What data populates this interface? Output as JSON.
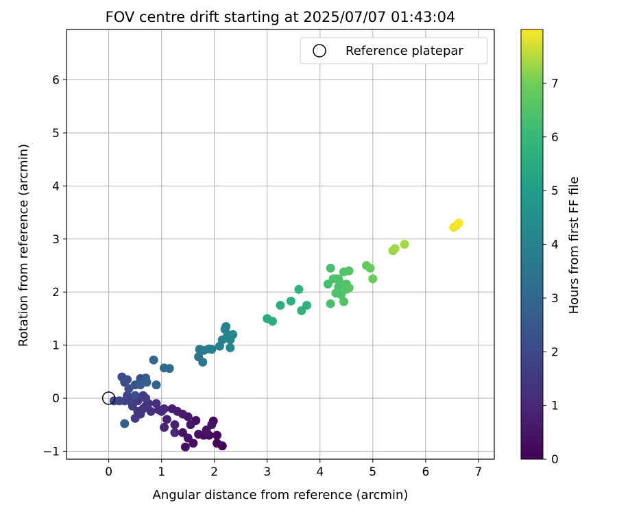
{
  "chart_data": {
    "type": "scatter",
    "title": "FOV centre drift starting at 2025/07/07 01:43:04",
    "xlabel": "Angular distance from reference (arcmin)",
    "ylabel": "Rotation from reference (arcmin)",
    "xlim": [
      -0.8,
      7.3
    ],
    "ylim": [
      -1.15,
      6.95
    ],
    "xticks": [
      0,
      1,
      2,
      3,
      4,
      5,
      6,
      7
    ],
    "yticks": [
      -1,
      0,
      1,
      2,
      3,
      4,
      5,
      6
    ],
    "grid": true,
    "legend": {
      "placement": "top-right",
      "label": "Reference platepar",
      "marker": "open-circle"
    },
    "reference_point": {
      "x": 0,
      "y": 0
    },
    "colorbar": {
      "label": "Hours from first FF file",
      "colormap": "viridis",
      "range": [
        0,
        8
      ],
      "ticks": [
        0,
        1,
        2,
        3,
        4,
        5,
        6,
        7
      ]
    },
    "points": [
      {
        "x": 2.15,
        "y": -0.9,
        "t": 0.05
      },
      {
        "x": 2.05,
        "y": -0.85,
        "t": 0.1
      },
      {
        "x": 1.98,
        "y": -0.43,
        "t": 0.12
      },
      {
        "x": 2.05,
        "y": -0.7,
        "t": 0.15
      },
      {
        "x": 1.9,
        "y": -0.7,
        "t": 0.2
      },
      {
        "x": 1.85,
        "y": -0.6,
        "t": 0.22
      },
      {
        "x": 1.8,
        "y": -0.7,
        "t": 0.25
      },
      {
        "x": 1.7,
        "y": -0.68,
        "t": 0.3
      },
      {
        "x": 1.65,
        "y": -0.42,
        "t": 0.32
      },
      {
        "x": 1.6,
        "y": -0.85,
        "t": 0.35
      },
      {
        "x": 1.45,
        "y": -0.92,
        "t": 0.38
      },
      {
        "x": 1.5,
        "y": -0.75,
        "t": 0.4
      },
      {
        "x": 1.4,
        "y": -0.65,
        "t": 0.45
      },
      {
        "x": 1.95,
        "y": -0.5,
        "t": 0.48
      },
      {
        "x": 1.85,
        "y": -0.65,
        "t": 0.5
      },
      {
        "x": 1.55,
        "y": -0.5,
        "t": 0.55
      },
      {
        "x": 1.5,
        "y": -0.35,
        "t": 0.6
      },
      {
        "x": 1.4,
        "y": -0.3,
        "t": 0.65
      },
      {
        "x": 1.3,
        "y": -0.25,
        "t": 0.7
      },
      {
        "x": 1.2,
        "y": -0.2,
        "t": 0.75
      },
      {
        "x": 1.25,
        "y": -0.5,
        "t": 0.8
      },
      {
        "x": 1.1,
        "y": -0.4,
        "t": 0.85
      },
      {
        "x": 1.05,
        "y": -0.55,
        "t": 0.9
      },
      {
        "x": 1.25,
        "y": -0.65,
        "t": 0.95
      },
      {
        "x": 1.0,
        "y": -0.25,
        "t": 1.0
      },
      {
        "x": 1.05,
        "y": -0.2,
        "t": 1.05
      },
      {
        "x": 0.95,
        "y": -0.22,
        "t": 1.1
      },
      {
        "x": 0.9,
        "y": -0.1,
        "t": 1.15
      },
      {
        "x": 0.8,
        "y": -0.25,
        "t": 1.2
      },
      {
        "x": 0.75,
        "y": -0.1,
        "t": 1.25
      },
      {
        "x": 0.7,
        "y": -0.15,
        "t": 1.3
      },
      {
        "x": 0.65,
        "y": -0.2,
        "t": 1.35
      },
      {
        "x": 0.6,
        "y": -0.3,
        "t": 1.4
      },
      {
        "x": 0.55,
        "y": -0.25,
        "t": 1.45
      },
      {
        "x": 0.5,
        "y": -0.38,
        "t": 1.5
      },
      {
        "x": 0.55,
        "y": -0.05,
        "t": 1.55
      },
      {
        "x": 0.65,
        "y": 0.05,
        "t": 1.6
      },
      {
        "x": 0.7,
        "y": 0.0,
        "t": 1.65
      },
      {
        "x": 0.45,
        "y": -0.15,
        "t": 1.7
      },
      {
        "x": 0.4,
        "y": -0.05,
        "t": 1.75
      },
      {
        "x": 0.35,
        "y": 0.05,
        "t": 1.8
      },
      {
        "x": 0.3,
        "y": -0.05,
        "t": 1.85
      },
      {
        "x": 0.2,
        "y": -0.05,
        "t": 1.9
      },
      {
        "x": 0.1,
        "y": -0.05,
        "t": 1.95
      },
      {
        "x": 0.25,
        "y": 0.4,
        "t": 2.0
      },
      {
        "x": 0.3,
        "y": 0.3,
        "t": 2.05
      },
      {
        "x": 0.35,
        "y": 0.35,
        "t": 2.1
      },
      {
        "x": 0.38,
        "y": 0.18,
        "t": 2.15
      },
      {
        "x": 0.5,
        "y": 0.05,
        "t": 2.2
      },
      {
        "x": 0.5,
        "y": 0.25,
        "t": 2.3
      },
      {
        "x": 0.6,
        "y": 0.37,
        "t": 2.4
      },
      {
        "x": 0.7,
        "y": 0.38,
        "t": 2.5
      },
      {
        "x": 0.6,
        "y": 0.25,
        "t": 2.6
      },
      {
        "x": 0.3,
        "y": -0.48,
        "t": 2.65
      },
      {
        "x": 0.72,
        "y": 0.3,
        "t": 2.75
      },
      {
        "x": 0.9,
        "y": 0.25,
        "t": 2.85
      },
      {
        "x": 0.85,
        "y": 0.72,
        "t": 2.95
      },
      {
        "x": 1.05,
        "y": 0.57,
        "t": 3.05
      },
      {
        "x": 1.15,
        "y": 0.56,
        "t": 3.15
      },
      {
        "x": 1.7,
        "y": 0.78,
        "t": 3.55
      },
      {
        "x": 1.78,
        "y": 0.68,
        "t": 3.65
      },
      {
        "x": 1.72,
        "y": 0.92,
        "t": 3.7
      },
      {
        "x": 1.8,
        "y": 0.9,
        "t": 3.75
      },
      {
        "x": 1.9,
        "y": 0.93,
        "t": 3.8
      },
      {
        "x": 1.95,
        "y": 0.92,
        "t": 3.85
      },
      {
        "x": 2.1,
        "y": 0.98,
        "t": 3.9
      },
      {
        "x": 2.15,
        "y": 1.1,
        "t": 3.95
      },
      {
        "x": 2.2,
        "y": 1.3,
        "t": 4.0
      },
      {
        "x": 2.22,
        "y": 1.35,
        "t": 4.05
      },
      {
        "x": 2.25,
        "y": 1.2,
        "t": 4.1
      },
      {
        "x": 2.3,
        "y": 1.1,
        "t": 4.15
      },
      {
        "x": 2.35,
        "y": 1.2,
        "t": 4.2
      },
      {
        "x": 2.3,
        "y": 0.95,
        "t": 4.25
      },
      {
        "x": 3.0,
        "y": 1.5,
        "t": 5.55
      },
      {
        "x": 3.1,
        "y": 1.45,
        "t": 5.6
      },
      {
        "x": 3.25,
        "y": 1.75,
        "t": 5.65
      },
      {
        "x": 3.45,
        "y": 1.83,
        "t": 5.7
      },
      {
        "x": 3.6,
        "y": 2.05,
        "t": 5.75
      },
      {
        "x": 3.65,
        "y": 1.65,
        "t": 5.8
      },
      {
        "x": 3.75,
        "y": 1.75,
        "t": 5.85
      },
      {
        "x": 4.15,
        "y": 2.15,
        "t": 6.3
      },
      {
        "x": 4.2,
        "y": 2.45,
        "t": 6.35
      },
      {
        "x": 4.2,
        "y": 1.78,
        "t": 6.35
      },
      {
        "x": 4.3,
        "y": 2.25,
        "t": 6.4
      },
      {
        "x": 4.35,
        "y": 2.1,
        "t": 6.4
      },
      {
        "x": 4.35,
        "y": 2.25,
        "t": 6.45
      },
      {
        "x": 4.4,
        "y": 2.15,
        "t": 6.45
      },
      {
        "x": 4.4,
        "y": 1.95,
        "t": 6.45
      },
      {
        "x": 4.45,
        "y": 2.38,
        "t": 6.5
      },
      {
        "x": 4.45,
        "y": 1.82,
        "t": 6.5
      },
      {
        "x": 4.5,
        "y": 2.15,
        "t": 6.5
      },
      {
        "x": 4.5,
        "y": 2.05,
        "t": 6.55
      },
      {
        "x": 4.55,
        "y": 2.4,
        "t": 6.55
      },
      {
        "x": 4.55,
        "y": 2.08,
        "t": 6.55
      },
      {
        "x": 4.3,
        "y": 1.98,
        "t": 6.45
      },
      {
        "x": 4.25,
        "y": 2.25,
        "t": 6.42
      },
      {
        "x": 4.88,
        "y": 2.5,
        "t": 6.8
      },
      {
        "x": 4.95,
        "y": 2.45,
        "t": 6.85
      },
      {
        "x": 5.0,
        "y": 2.25,
        "t": 6.9
      },
      {
        "x": 5.38,
        "y": 2.78,
        "t": 7.3
      },
      {
        "x": 5.42,
        "y": 2.82,
        "t": 7.35
      },
      {
        "x": 5.6,
        "y": 2.9,
        "t": 7.4
      },
      {
        "x": 6.53,
        "y": 3.22,
        "t": 7.85
      },
      {
        "x": 6.58,
        "y": 3.25,
        "t": 7.9
      },
      {
        "x": 6.63,
        "y": 3.3,
        "t": 7.95
      }
    ]
  }
}
